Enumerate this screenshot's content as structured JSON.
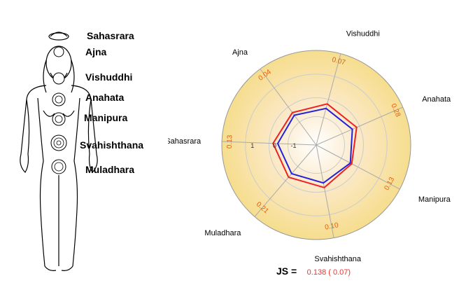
{
  "figure": {
    "chakras": [
      {
        "id": "sahasrara",
        "label": "Sahasrara"
      },
      {
        "id": "ajna",
        "label": "Ajna"
      },
      {
        "id": "vishuddhi",
        "label": "Vishuddhi"
      },
      {
        "id": "anahata",
        "label": "Anahata"
      },
      {
        "id": "manipura",
        "label": "Manipura"
      },
      {
        "id": "svahishthana",
        "label": "Svahishthana"
      },
      {
        "id": "muladhara",
        "label": "Muladhara"
      }
    ]
  },
  "chart_data": {
    "type": "radar",
    "axes": [
      "Vishuddhi",
      "Anahata",
      "Manipura",
      "Svahishthana",
      "Muladhara",
      "Sahasrara",
      "Ajna"
    ],
    "axis_value_labels": [
      "0.07",
      "0.28",
      "0.13",
      "0.10",
      "0.21",
      "0.13",
      "0.04"
    ],
    "ring_labels": [
      "1",
      "0",
      "-1"
    ],
    "rmin": -2,
    "rmax": 4,
    "series": [
      {
        "color": "#ee2222",
        "values": [
          0.7,
          0.8,
          0.55,
          0.75,
          0.7,
          0.75,
          0.55
        ]
      },
      {
        "color": "#2222dd",
        "values": [
          0.4,
          0.5,
          0.45,
          0.45,
          0.4,
          0.45,
          0.35
        ]
      }
    ],
    "background_gradient": [
      "#ffffff",
      "#fbe9c8",
      "#f6dd8e"
    ],
    "footer": {
      "label": "JS =",
      "value": "0.138 ( 0.07)"
    }
  }
}
